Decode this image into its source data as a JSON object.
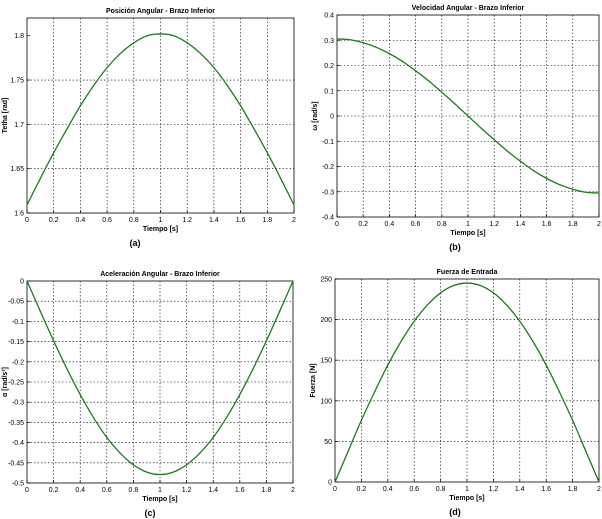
{
  "colors": {
    "line": "#1f7a1f",
    "grid": "#000000",
    "axis": "#000000",
    "background": "#ffffff"
  },
  "chart_data": [
    {
      "type": "line",
      "panel_label": "(a)",
      "title": "Posición Angular - Brazo Inferior",
      "xlabel": "Tiempo [s]",
      "ylabel": "Tetha [rad]",
      "xlim": [
        0,
        2
      ],
      "ylim": [
        1.6,
        1.82
      ],
      "xticks": [
        "0",
        "0.2",
        "0.4",
        "0.6",
        "0.8",
        "1",
        "1.2",
        "1.4",
        "1.6",
        "1.8",
        "2"
      ],
      "yticks": [
        "1.6",
        "1.65",
        "1.7",
        "1.75",
        "1.8"
      ],
      "grid": true,
      "x": [
        0,
        0.1,
        0.2,
        0.3,
        0.4,
        0.5,
        0.6,
        0.7,
        0.8,
        0.9,
        1.0,
        1.1,
        1.2,
        1.3,
        1.4,
        1.5,
        1.6,
        1.7,
        1.8,
        1.9,
        2.0
      ],
      "y": [
        1.609,
        1.639,
        1.668,
        1.695,
        1.721,
        1.744,
        1.764,
        1.78,
        1.792,
        1.8,
        1.802,
        1.8,
        1.792,
        1.78,
        1.764,
        1.744,
        1.721,
        1.695,
        1.668,
        1.639,
        1.609
      ]
    },
    {
      "type": "line",
      "panel_label": "(b)",
      "title": "Velocidad Angular - Brazo Inferior",
      "xlabel": "Tiempo [s]",
      "ylabel": "ω [rad/s]",
      "xlim": [
        0,
        2
      ],
      "ylim": [
        -0.4,
        0.4
      ],
      "xticks": [
        "0",
        "0.2",
        "0.4",
        "0.6",
        "0.8",
        "1",
        "1.2",
        "1.4",
        "1.6",
        "1.8",
        "2"
      ],
      "yticks": [
        "-0.4",
        "-0.3",
        "-0.2",
        "-0.1",
        "0",
        "0.1",
        "0.2",
        "0.3",
        "0.4"
      ],
      "grid": true,
      "x": [
        0,
        0.1,
        0.2,
        0.3,
        0.4,
        0.5,
        0.6,
        0.7,
        0.8,
        0.9,
        1.0,
        1.1,
        1.2,
        1.3,
        1.4,
        1.5,
        1.6,
        1.7,
        1.8,
        1.9,
        2.0
      ],
      "y": [
        0.305,
        0.302,
        0.29,
        0.272,
        0.247,
        0.216,
        0.179,
        0.139,
        0.094,
        0.048,
        0.0,
        -0.048,
        -0.094,
        -0.139,
        -0.179,
        -0.216,
        -0.247,
        -0.272,
        -0.29,
        -0.302,
        -0.305
      ]
    },
    {
      "type": "line",
      "panel_label": "(c)",
      "title": "Aceleración Angular - Brazo Inferior",
      "xlabel": "Tiempo [s]",
      "ylabel": "α [rad/s²]",
      "xlim": [
        0,
        2
      ],
      "ylim": [
        -0.5,
        0
      ],
      "xticks": [
        "0",
        "0.2",
        "0.4",
        "0.6",
        "0.8",
        "1",
        "1.2",
        "1.4",
        "1.6",
        "1.8",
        "2"
      ],
      "yticks": [
        "-0.5",
        "-0.45",
        "-0.4",
        "-0.35",
        "-0.3",
        "-0.25",
        "-0.2",
        "-0.15",
        "-0.1",
        "-0.05",
        "0"
      ],
      "grid": true,
      "x": [
        0,
        0.1,
        0.2,
        0.3,
        0.4,
        0.5,
        0.6,
        0.7,
        0.8,
        0.9,
        1.0,
        1.1,
        1.2,
        1.3,
        1.4,
        1.5,
        1.6,
        1.7,
        1.8,
        1.9,
        2.0
      ],
      "y": [
        0.0,
        -0.075,
        -0.148,
        -0.217,
        -0.281,
        -0.338,
        -0.387,
        -0.426,
        -0.455,
        -0.473,
        -0.479,
        -0.473,
        -0.455,
        -0.426,
        -0.387,
        -0.338,
        -0.281,
        -0.217,
        -0.148,
        -0.075,
        0.0
      ]
    },
    {
      "type": "line",
      "panel_label": "(d)",
      "title": "Fuerza de Entrada",
      "xlabel": "Tiempo [s]",
      "ylabel": "Fuerza [N]",
      "xlim": [
        0,
        2
      ],
      "ylim": [
        0,
        250
      ],
      "xticks": [
        "0",
        "0.2",
        "0.4",
        "0.6",
        "0.8",
        "1",
        "1.2",
        "1.4",
        "1.6",
        "1.8",
        "2"
      ],
      "yticks": [
        "0",
        "50",
        "100",
        "150",
        "200",
        "250"
      ],
      "grid": true,
      "x": [
        0,
        0.1,
        0.2,
        0.3,
        0.4,
        0.5,
        0.6,
        0.7,
        0.8,
        0.9,
        1.0,
        1.1,
        1.2,
        1.3,
        1.4,
        1.5,
        1.6,
        1.7,
        1.8,
        1.9,
        2.0
      ],
      "y": [
        0,
        38,
        76,
        111,
        144,
        173,
        198,
        218,
        233,
        242,
        245,
        242,
        233,
        218,
        198,
        173,
        144,
        111,
        76,
        38,
        0
      ]
    }
  ]
}
